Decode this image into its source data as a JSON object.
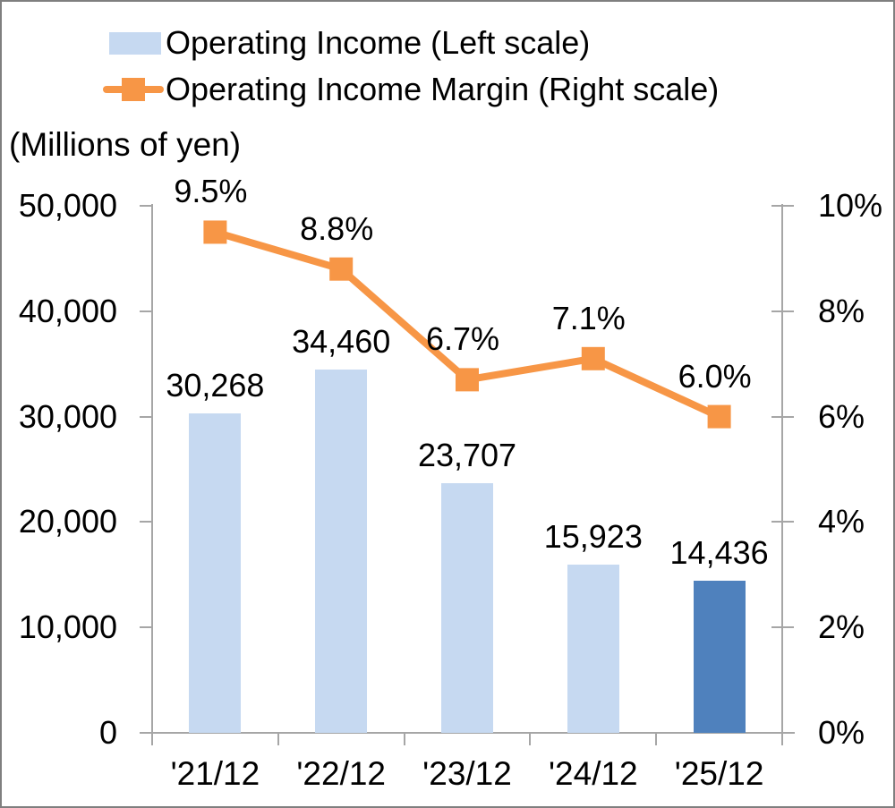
{
  "legend": {
    "items": [
      {
        "label": "Operating Income (Left scale)",
        "swatch_color": "#c6d9f1"
      },
      {
        "label": "Operating Income Margin (Right scale)",
        "marker_color": "#f79646"
      }
    ],
    "position": "top-left"
  },
  "units_label": "(Millions of yen)",
  "chart_data": {
    "type": "bar+line combo",
    "categories": [
      "'21/12",
      "'22/12",
      "'23/12",
      "'24/12",
      "'25/12"
    ],
    "series": [
      {
        "name": "Operating Income (Left scale)",
        "type": "bar",
        "axis": "left",
        "values": [
          30268,
          34460,
          23707,
          15923,
          14436
        ],
        "value_labels": [
          "30,268",
          "34,460",
          "23,707",
          "15,923",
          "14,436"
        ],
        "bar_colors": [
          "#c6d9f1",
          "#c6d9f1",
          "#c6d9f1",
          "#c6d9f1",
          "#4f81bd"
        ]
      },
      {
        "name": "Operating Income Margin (Right scale)",
        "type": "line",
        "axis": "right",
        "values": [
          9.5,
          8.8,
          6.7,
          7.1,
          6.0
        ],
        "value_labels": [
          "9.5%",
          "8.8%",
          "6.7%",
          "7.1%",
          "6.0%"
        ],
        "color": "#f79646",
        "marker": "square"
      }
    ],
    "left_axis": {
      "title": "(Millions of yen)",
      "min": 0,
      "max": 50000,
      "tick_labels": [
        "50,000",
        "40,000",
        "30,000",
        "20,000",
        "10,000",
        "0"
      ],
      "tick_values": [
        50000,
        40000,
        30000,
        20000,
        10000,
        0
      ]
    },
    "right_axis": {
      "min": 0,
      "max": 10,
      "unit": "%",
      "tick_labels": [
        "10%",
        "8%",
        "6%",
        "4%",
        "2%",
        "0%"
      ],
      "tick_values": [
        10,
        8,
        6,
        4,
        2,
        0
      ]
    },
    "grid": false,
    "legend_position": "top-left",
    "axis_color": "#a6a6a6",
    "text_color": "#000000",
    "background_color": "#ffffff"
  }
}
